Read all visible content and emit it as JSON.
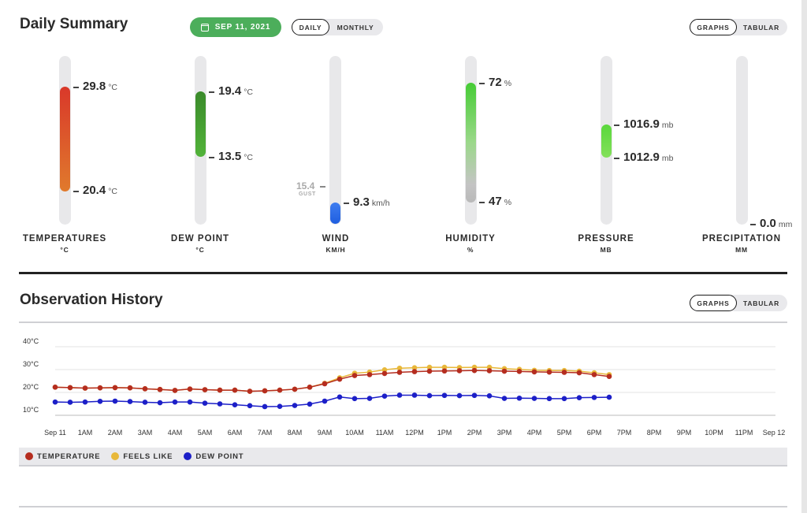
{
  "summary": {
    "title": "Daily Summary",
    "date_label": "SEP 11, 2021",
    "period_toggle": [
      "DAILY",
      "MONTHLY"
    ],
    "view_toggle": [
      "GRAPHS",
      "TABULAR"
    ],
    "gauges": [
      {
        "label": "TEMPERATURES",
        "unit": "°C",
        "high": "29.8",
        "low": "20.4",
        "value_unit": "°C"
      },
      {
        "label": "DEW POINT",
        "unit": "°C",
        "high": "19.4",
        "low": "13.5",
        "value_unit": "°C"
      },
      {
        "label": "WIND",
        "unit": "KM/H",
        "gust_value": "15.4",
        "gust_label": "GUST",
        "value": "9.3",
        "value_unit": "km/h"
      },
      {
        "label": "HUMIDITY",
        "unit": "%",
        "high": "72",
        "low": "47",
        "value_unit": "%"
      },
      {
        "label": "PRESSURE",
        "unit": "MB",
        "high": "1016.9",
        "low": "1012.9",
        "value_unit": "mb"
      },
      {
        "label": "PRECIPITATION",
        "unit": "MM",
        "value": "0.0",
        "value_unit": "mm"
      }
    ]
  },
  "history": {
    "title": "Observation History",
    "view_toggle": [
      "GRAPHS",
      "TABULAR"
    ],
    "legend": [
      {
        "name": "TEMPERATURE",
        "color": "#b52d1f"
      },
      {
        "name": "FEELS LIKE",
        "color": "#e8b83a"
      },
      {
        "name": "DEW POINT",
        "color": "#1c1fc8"
      }
    ]
  },
  "chart_data": {
    "type": "line",
    "x_labels": [
      "Sep 11",
      "1AM",
      "2AM",
      "3AM",
      "4AM",
      "5AM",
      "6AM",
      "7AM",
      "8AM",
      "9AM",
      "10AM",
      "11AM",
      "12PM",
      "1PM",
      "2PM",
      "3PM",
      "4PM",
      "5PM",
      "6PM",
      "7PM",
      "8PM",
      "9PM",
      "10PM",
      "11PM",
      "Sep 12"
    ],
    "y_ticks": [
      "10°C",
      "20°C",
      "30°C",
      "40°C"
    ],
    "ylim": [
      10,
      40
    ],
    "x_unit": "hour of day",
    "grid": true,
    "series": [
      {
        "name": "TEMPERATURE",
        "color": "#b52d1f",
        "x": [
          0,
          0.5,
          1,
          1.5,
          2,
          2.5,
          3,
          3.5,
          4,
          4.5,
          5,
          5.5,
          6,
          6.5,
          7,
          7.5,
          8,
          8.5,
          9,
          9.5,
          10,
          10.5,
          11,
          11.5,
          12,
          12.5,
          13,
          13.5,
          14,
          14.5,
          15,
          15.5,
          16,
          16.5,
          17,
          17.5,
          18,
          18.5
        ],
        "values": [
          22.3,
          22.1,
          21.9,
          22.0,
          22.1,
          22.0,
          21.6,
          21.3,
          20.9,
          21.5,
          21.2,
          21.0,
          21.0,
          20.5,
          20.7,
          21.0,
          21.4,
          22.3,
          23.8,
          25.8,
          27.4,
          27.8,
          28.3,
          28.8,
          29.1,
          29.3,
          29.4,
          29.5,
          29.6,
          29.5,
          29.3,
          29.2,
          29.0,
          28.9,
          28.8,
          28.6,
          27.8,
          27.0
        ]
      },
      {
        "name": "FEELS LIKE",
        "color": "#e8b83a",
        "x": [
          0,
          0.5,
          1,
          1.5,
          2,
          2.5,
          3,
          3.5,
          4,
          4.5,
          5,
          5.5,
          6,
          6.5,
          7,
          7.5,
          8,
          8.5,
          9,
          9.5,
          10,
          10.5,
          11,
          11.5,
          12,
          12.5,
          13,
          13.5,
          14,
          14.5,
          15,
          15.5,
          16,
          16.5,
          17,
          17.5,
          18,
          18.5
        ],
        "values": [
          22.3,
          22.1,
          21.9,
          22.0,
          22.1,
          22.0,
          21.6,
          21.3,
          20.9,
          21.5,
          21.2,
          21.0,
          21.0,
          20.5,
          20.7,
          21.0,
          21.4,
          22.3,
          24.0,
          26.4,
          28.4,
          28.9,
          29.9,
          30.6,
          30.8,
          31.0,
          31.0,
          30.9,
          31.0,
          31.0,
          30.4,
          30.1,
          29.7,
          29.6,
          29.6,
          29.3,
          28.6,
          27.8
        ]
      },
      {
        "name": "DEW POINT",
        "color": "#1c1fc8",
        "x": [
          0,
          0.5,
          1,
          1.5,
          2,
          2.5,
          3,
          3.5,
          4,
          4.5,
          5,
          5.5,
          6,
          6.5,
          7,
          7.5,
          8,
          8.5,
          9,
          9.5,
          10,
          10.5,
          11,
          11.5,
          12,
          12.5,
          13,
          13.5,
          14,
          14.5,
          15,
          15.5,
          16,
          16.5,
          17,
          17.5,
          18,
          18.5
        ],
        "values": [
          15.8,
          15.7,
          15.8,
          16.1,
          16.2,
          16.0,
          15.7,
          15.5,
          15.8,
          15.8,
          15.3,
          15.0,
          14.6,
          14.2,
          13.8,
          13.9,
          14.3,
          14.9,
          16.2,
          18.0,
          17.3,
          17.4,
          18.4,
          18.8,
          18.8,
          18.6,
          18.7,
          18.6,
          18.7,
          18.5,
          17.4,
          17.5,
          17.4,
          17.3,
          17.3,
          17.7,
          17.8,
          17.9
        ]
      }
    ]
  }
}
